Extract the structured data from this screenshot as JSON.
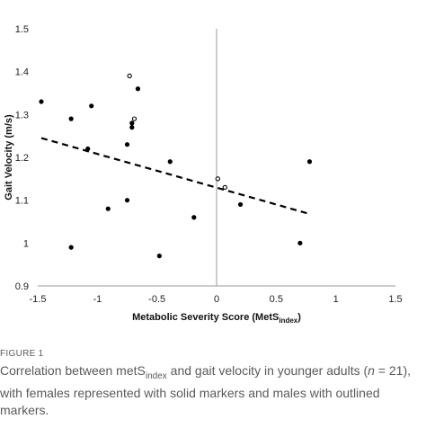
{
  "chart_data": {
    "type": "scatter",
    "xlabel_main": "Metabolic Severity Score (MetS",
    "xlabel_sub": "index",
    "xlabel_close": ")",
    "ylabel": "Gait Velocity (m/s)",
    "xlim": [
      -1.5,
      1.5
    ],
    "ylim": [
      0.9,
      1.5
    ],
    "x_ticks": [
      "-1.5",
      "-1",
      "-0.5",
      "0",
      "0.5",
      "1",
      "1.5"
    ],
    "y_ticks": [
      "0.9",
      "1",
      "1.1",
      "1.2",
      "1.3",
      "1.4",
      "1.5"
    ],
    "grid": false,
    "series": [
      {
        "marker": "solid",
        "points": [
          [
            -1.47,
            1.33
          ],
          [
            -1.22,
            1.29
          ],
          [
            -1.22,
            0.99
          ],
          [
            -1.08,
            1.22
          ],
          [
            -1.05,
            1.32
          ],
          [
            -0.91,
            1.08
          ],
          [
            -0.75,
            1.23
          ],
          [
            -0.75,
            1.1
          ],
          [
            -0.71,
            1.27
          ],
          [
            -0.71,
            1.28
          ],
          [
            -0.66,
            1.36
          ],
          [
            -0.48,
            0.97
          ],
          [
            -0.39,
            1.19
          ],
          [
            -0.19,
            1.06
          ],
          [
            0.2,
            1.09
          ],
          [
            0.7,
            1.0
          ],
          [
            0.78,
            1.19
          ]
        ]
      },
      {
        "marker": "outlined",
        "points": [
          [
            -0.73,
            1.39
          ],
          [
            -0.69,
            1.29
          ],
          [
            0.01,
            1.15
          ],
          [
            0.07,
            1.13
          ]
        ]
      }
    ],
    "trendline": {
      "style": "dashed",
      "x": [
        -1.47,
        0.78
      ],
      "y": [
        1.245,
        1.068
      ]
    },
    "colors": {
      "marker": "#000000",
      "axis": "#9a9a9a",
      "caption": "#5a5a5a"
    }
  },
  "caption": {
    "label": "FIGURE 1",
    "text_1": "Correlation between metS",
    "text_sub": "index",
    "text_2": " and gait velocity in younger adults (",
    "text_n": "n",
    "text_3": " = 21), with females represented with solid markers and males with outlined markers."
  }
}
